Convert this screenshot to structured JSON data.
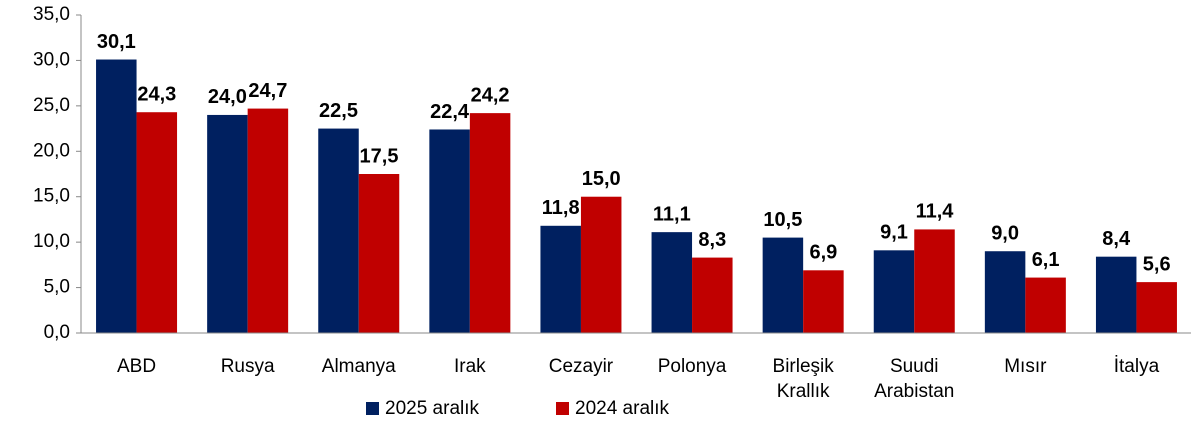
{
  "chart_data": {
    "type": "bar",
    "categories": [
      "ABD",
      "Rusya",
      "Almanya",
      "Irak",
      "Cezayir",
      "Polonya",
      "Birleşik Krallık",
      "Suudi Arabistan",
      "Mısır",
      "İtalya"
    ],
    "series": [
      {
        "name": "2025 aralık",
        "color": "#002060",
        "values": [
          30.1,
          24.0,
          22.5,
          22.4,
          11.8,
          11.1,
          10.5,
          9.1,
          9.0,
          8.4
        ],
        "value_labels": [
          "30,1",
          "24,0",
          "22,5",
          "22,4",
          "11,8",
          "11,1",
          "10,5",
          "9,1",
          "9,0",
          "8,4"
        ]
      },
      {
        "name": "2024 aralık",
        "color": "#c00000",
        "values": [
          24.3,
          24.7,
          17.5,
          24.2,
          15.0,
          8.3,
          6.9,
          11.4,
          6.1,
          5.6
        ],
        "value_labels": [
          "24,3",
          "24,7",
          "17,5",
          "24,2",
          "15,0",
          "8,3",
          "6,9",
          "11,4",
          "6,1",
          "5,6"
        ]
      }
    ],
    "ylim": [
      0,
      35
    ],
    "yticks": [
      {
        "value": 0,
        "label": "0,0"
      },
      {
        "value": 5,
        "label": "5,0"
      },
      {
        "value": 10,
        "label": "10,0"
      },
      {
        "value": 15,
        "label": "15,0"
      },
      {
        "value": 20,
        "label": "20,0"
      },
      {
        "value": 25,
        "label": "25,0"
      },
      {
        "value": 30,
        "label": "30,0"
      },
      {
        "value": 35,
        "label": "35,0"
      }
    ],
    "legend": "bottom"
  }
}
